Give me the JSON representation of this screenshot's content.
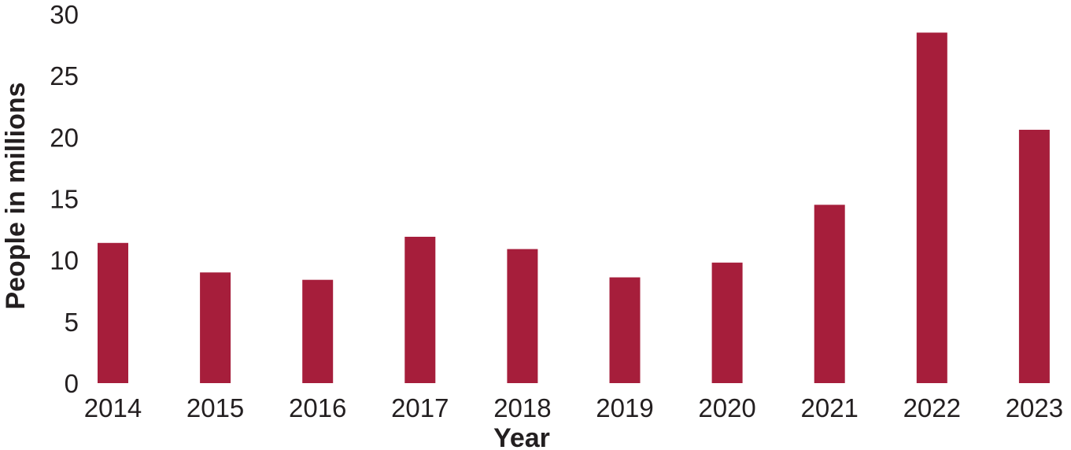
{
  "chart_data": {
    "type": "bar",
    "title": "",
    "xlabel": "Year",
    "ylabel": "People in millions",
    "categories": [
      "2014",
      "2015",
      "2016",
      "2017",
      "2018",
      "2019",
      "2020",
      "2021",
      "2022",
      "2023"
    ],
    "values": [
      11.4,
      9.0,
      8.4,
      11.9,
      10.9,
      8.6,
      9.8,
      14.5,
      28.5,
      20.6
    ],
    "ylim": [
      0,
      30
    ],
    "yticks": [
      "0",
      "5",
      "10",
      "15",
      "20",
      "25",
      "30"
    ],
    "grid": false,
    "legend": "none",
    "bar_color": "#a61e3b",
    "text_color": "#231f20"
  }
}
